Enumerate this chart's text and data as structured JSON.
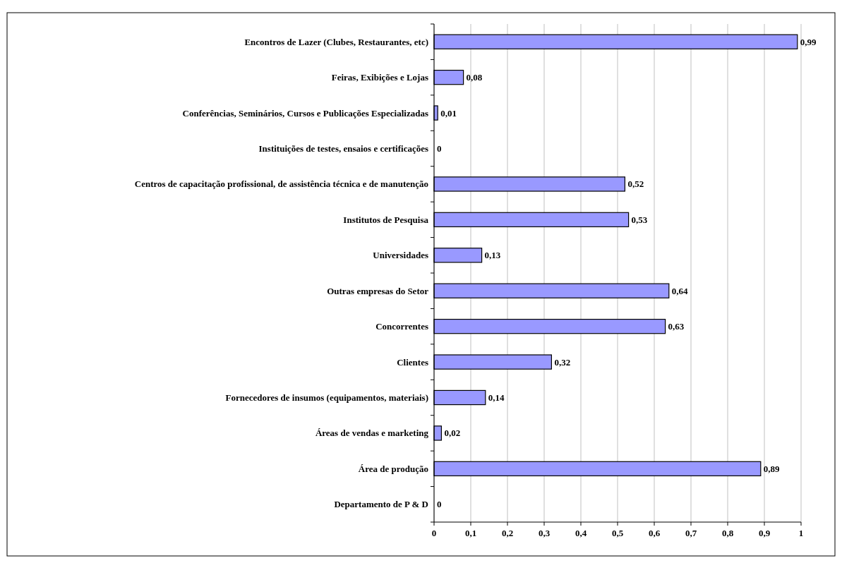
{
  "chart_data": {
    "type": "bar",
    "orientation": "horizontal",
    "categories": [
      "Encontros de Lazer (Clubes, Restaurantes, etc)",
      "Feiras, Exibições e Lojas",
      "Conferências, Seminários, Cursos e Publicações Especializadas",
      "Instituições de testes, ensaios e certificações",
      "Centros de capacitação profissional, de assistência técnica e de manutenção",
      "Institutos de Pesquisa",
      "Universidades",
      "Outras empresas do Setor",
      "Concorrentes",
      "Clientes",
      "Fornecedores de insumos (equipamentos, materiais)",
      "Áreas de vendas e marketing",
      "Área de produção",
      "Departamento de P & D"
    ],
    "values": [
      0.99,
      0.08,
      0.01,
      0,
      0.52,
      0.53,
      0.13,
      0.64,
      0.63,
      0.32,
      0.14,
      0.02,
      0.89,
      0
    ],
    "value_labels": [
      "0,99",
      "0,08",
      "0,01",
      "0",
      "0,52",
      "0,53",
      "0,13",
      "0,64",
      "0,63",
      "0,32",
      "0,14",
      "0,02",
      "0,89",
      "0"
    ],
    "color": "#9999ff",
    "xlim": [
      0,
      1
    ],
    "xticks": [
      0,
      {
        "value": 0.1,
        "label": "0,1"
      },
      {
        "value": 0.2,
        "label": "0,2"
      },
      {
        "value": 0.3,
        "label": "0,3"
      },
      {
        "value": 0.4,
        "label": "0,4"
      },
      {
        "value": 0.5,
        "label": "0,5"
      },
      {
        "value": 0.6,
        "label": "0,6"
      },
      {
        "value": 0.7,
        "label": "0,7"
      },
      {
        "value": 0.8,
        "label": "0,8"
      },
      {
        "value": 0.9,
        "label": "0,9"
      },
      1
    ],
    "grid": "x"
  }
}
